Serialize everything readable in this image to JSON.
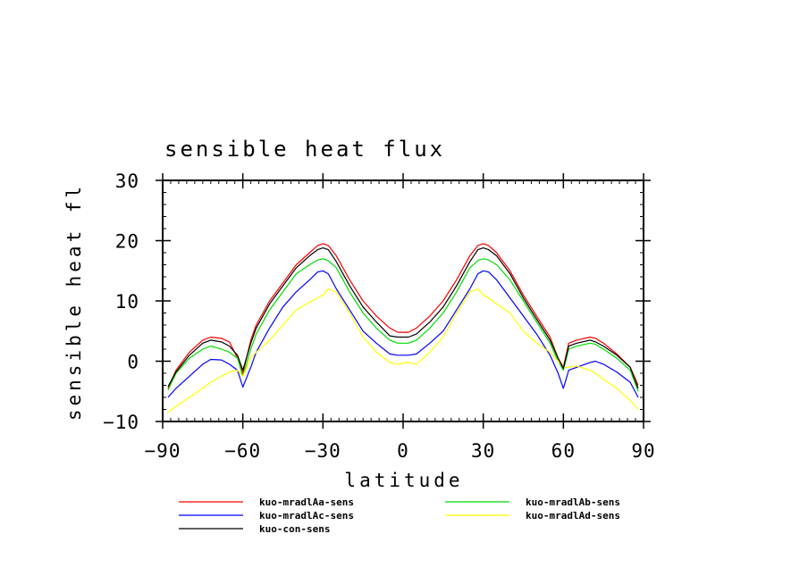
{
  "chart_data": {
    "type": "line",
    "title": "sensible heat flux",
    "xlabel": "latitude",
    "ylabel": "sensible heat fl",
    "xlim": [
      -90,
      90
    ],
    "ylim": [
      -10,
      30
    ],
    "xticks": [
      -90,
      -60,
      -30,
      0,
      30,
      60,
      90
    ],
    "xtick_labels": [
      "−90",
      "−60",
      "−30",
      "0",
      "30",
      "60",
      "90"
    ],
    "yticks": [
      -10,
      0,
      10,
      20,
      30
    ],
    "ytick_labels": [
      "−10",
      "0",
      "10",
      "20",
      "30"
    ],
    "grid": false,
    "legend_position": "bottom",
    "x": [
      -88,
      -85,
      -80,
      -75,
      -72,
      -68,
      -65,
      -62,
      -60,
      -57,
      -55,
      -50,
      -45,
      -40,
      -35,
      -32,
      -30,
      -28,
      -25,
      -20,
      -15,
      -10,
      -5,
      -2,
      0,
      2,
      5,
      10,
      15,
      20,
      25,
      28,
      30,
      32,
      35,
      40,
      45,
      50,
      55,
      58,
      60,
      62,
      65,
      70,
      72,
      75,
      80,
      85,
      88
    ],
    "series": [
      {
        "name": "kuo-mradlAa-sens",
        "color": "#ff0000",
        "values": [
          -4.5,
          -1.5,
          1.5,
          3.5,
          4.0,
          3.8,
          3.2,
          0.5,
          -2.0,
          3.5,
          6.0,
          10.0,
          13.0,
          16.0,
          18.0,
          19.2,
          19.5,
          19.2,
          17.5,
          13.5,
          10.0,
          7.5,
          5.5,
          4.8,
          4.8,
          4.8,
          5.5,
          7.5,
          10.0,
          13.5,
          17.5,
          19.2,
          19.5,
          19.2,
          18.0,
          15.0,
          11.0,
          7.5,
          4.0,
          0.5,
          -1.0,
          3.0,
          3.5,
          4.0,
          3.8,
          3.0,
          1.2,
          -1.0,
          -4.0
        ]
      },
      {
        "name": "kuo-mradlAb-sens",
        "color": "#00dd00",
        "values": [
          -4.8,
          -2.0,
          0.5,
          2.0,
          2.5,
          2.0,
          1.5,
          0.5,
          -2.5,
          2.0,
          4.5,
          8.5,
          11.5,
          14.5,
          16.0,
          16.8,
          17.0,
          16.7,
          15.5,
          11.5,
          8.0,
          5.5,
          3.5,
          3.0,
          3.0,
          3.0,
          3.5,
          5.5,
          8.0,
          11.5,
          15.5,
          16.7,
          17.0,
          16.8,
          16.0,
          13.5,
          10.0,
          6.5,
          3.0,
          0.0,
          -1.5,
          2.0,
          2.5,
          3.0,
          2.8,
          2.0,
          0.5,
          -1.5,
          -5.0
        ]
      },
      {
        "name": "kuo-mradlAc-sens",
        "color": "#0000ff",
        "values": [
          -6.0,
          -4.5,
          -2.5,
          -0.5,
          0.3,
          0.2,
          -0.5,
          -1.5,
          -4.3,
          -1.0,
          1.5,
          5.5,
          9.0,
          11.5,
          13.5,
          14.8,
          15.0,
          14.5,
          12.0,
          8.5,
          5.0,
          3.0,
          1.2,
          1.0,
          1.0,
          1.0,
          1.2,
          3.0,
          5.0,
          8.5,
          12.0,
          14.5,
          15.0,
          14.8,
          13.5,
          10.5,
          7.5,
          4.5,
          1.0,
          -2.0,
          -4.5,
          -1.5,
          -1.0,
          -0.2,
          0.0,
          -0.5,
          -1.8,
          -3.5,
          -6.0
        ]
      },
      {
        "name": "kuo-mradlAd-sens",
        "color": "#ffff00",
        "values": [
          -8.5,
          -7.5,
          -6.0,
          -4.5,
          -3.5,
          -2.5,
          -1.8,
          -1.5,
          -2.5,
          0.5,
          1.5,
          3.5,
          6.0,
          8.5,
          9.8,
          10.5,
          11.0,
          12.0,
          11.5,
          8.0,
          4.0,
          1.5,
          -0.2,
          -0.5,
          -0.3,
          -0.2,
          -0.5,
          1.5,
          4.0,
          8.0,
          11.5,
          12.0,
          11.0,
          10.5,
          9.5,
          8.0,
          5.0,
          3.0,
          1.5,
          0.0,
          -1.0,
          -1.0,
          -0.8,
          -1.5,
          -2.0,
          -3.0,
          -4.5,
          -6.5,
          -8.0
        ]
      },
      {
        "name": "kuo-con-sens",
        "color": "#000000",
        "values": [
          -4.2,
          -1.8,
          1.0,
          3.0,
          3.5,
          3.2,
          2.5,
          1.0,
          -1.5,
          3.0,
          5.5,
          9.5,
          12.5,
          15.5,
          17.5,
          18.5,
          18.8,
          18.5,
          16.5,
          12.5,
          9.0,
          6.5,
          4.2,
          4.0,
          4.0,
          4.0,
          4.5,
          6.5,
          9.0,
          12.5,
          16.5,
          18.5,
          18.8,
          18.5,
          17.5,
          14.5,
          10.5,
          7.0,
          3.5,
          0.5,
          -1.2,
          2.5,
          3.0,
          3.5,
          3.2,
          2.5,
          1.0,
          -1.0,
          -4.5
        ]
      }
    ]
  }
}
